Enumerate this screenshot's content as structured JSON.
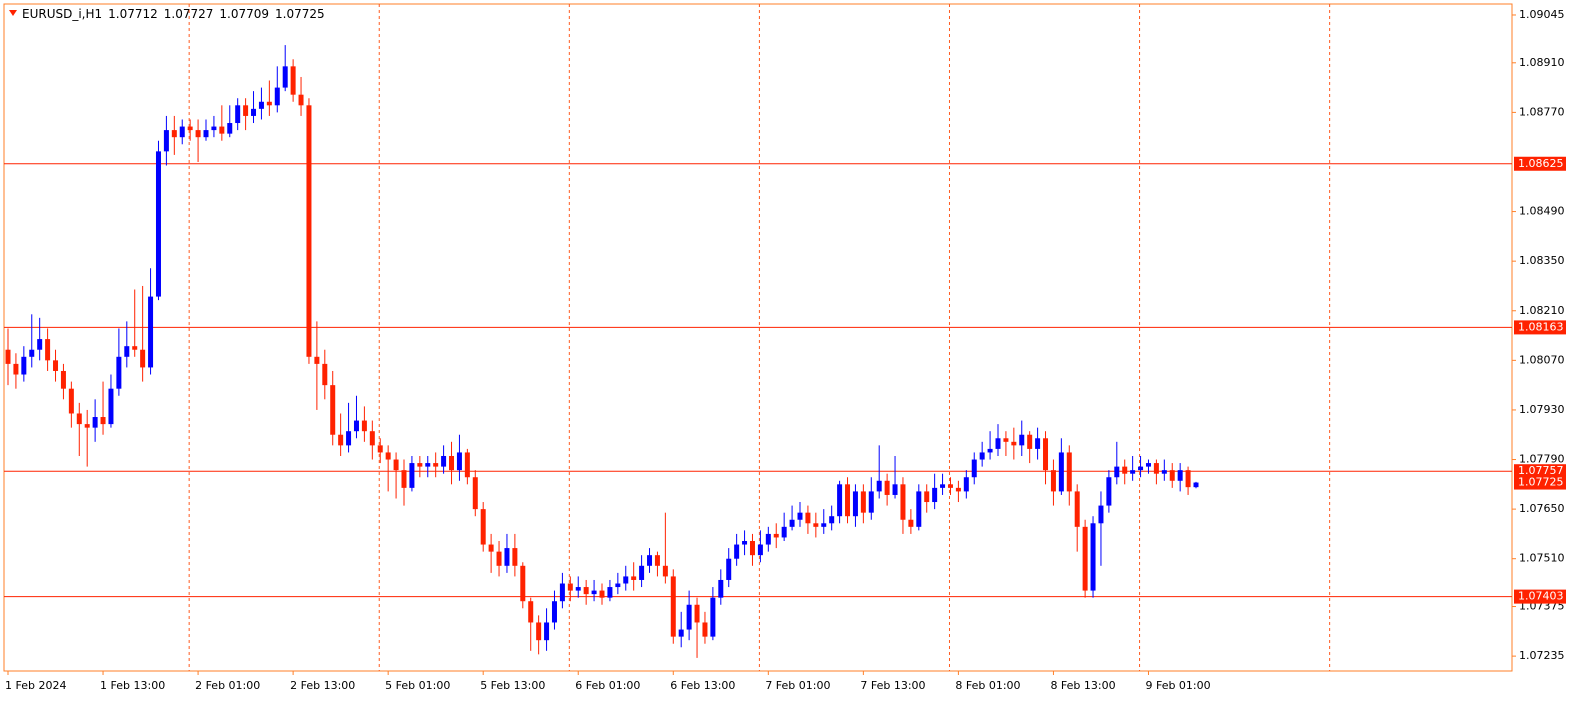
{
  "chart_data": {
    "type": "candlestick",
    "title": "EURUSD_i,H1",
    "up_color": "#0000ff",
    "down_color": "#ff2200",
    "line_color": "#ff2200",
    "ylim": [
      1.07193,
      1.09076
    ],
    "yticks": [
      1.09045,
      {
        "value": 1.0891,
        "label": "1.08910"
      },
      {
        "value": 1.0877,
        "label": "1.08770"
      },
      {
        "value": 1.0849,
        "label": "1.08490"
      },
      {
        "value": 1.0835,
        "label": "1.08350"
      },
      {
        "value": 1.0821,
        "label": "1.08210"
      },
      {
        "value": 1.0807,
        "label": "1.08070"
      },
      {
        "value": 1.0793,
        "label": "1.07930"
      },
      {
        "value": 1.0779,
        "label": "1.07790"
      },
      {
        "value": 1.0765,
        "label": "1.07650"
      },
      {
        "value": 1.0751,
        "label": "1.07510"
      },
      1.07375,
      1.07235
    ],
    "hlines": [
      1.08625,
      1.08163,
      1.07757,
      1.07403
    ],
    "categories": [
      "1 Feb 2024",
      null,
      null,
      null,
      null,
      null,
      null,
      null,
      null,
      null,
      null,
      null,
      "1 Feb 13:00",
      null,
      null,
      null,
      null,
      null,
      null,
      null,
      null,
      null,
      null,
      null,
      "2 Feb 01:00",
      null,
      null,
      null,
      null,
      null,
      null,
      null,
      null,
      null,
      null,
      null,
      "2 Feb 13:00",
      null,
      null,
      null,
      null,
      null,
      null,
      null,
      null,
      null,
      null,
      null,
      "5 Feb 01:00",
      null,
      null,
      null,
      null,
      null,
      null,
      null,
      null,
      null,
      null,
      null,
      "5 Feb 13:00",
      null,
      null,
      null,
      null,
      null,
      null,
      null,
      null,
      null,
      null,
      null,
      "6 Feb 01:00",
      null,
      null,
      null,
      null,
      null,
      null,
      null,
      null,
      null,
      null,
      null,
      "6 Feb 13:00",
      null,
      null,
      null,
      null,
      null,
      null,
      null,
      null,
      null,
      null,
      null,
      "7 Feb 01:00",
      null,
      null,
      null,
      null,
      null,
      null,
      null,
      null,
      null,
      null,
      null,
      "7 Feb 13:00",
      null,
      null,
      null,
      null,
      null,
      null,
      null,
      null,
      null,
      null,
      null,
      "8 Feb 01:00",
      null,
      null,
      null,
      null,
      null,
      null,
      null,
      null,
      null,
      null,
      null,
      "8 Feb 13:00",
      null,
      null,
      null,
      null,
      null,
      null,
      null,
      null,
      null,
      null,
      null,
      "9 Feb 01:00",
      null,
      null,
      null,
      null,
      null,
      null
    ],
    "open": [
      1.081,
      1.0806,
      1.0803,
      1.0808,
      1.081,
      1.0813,
      1.0807,
      1.0804,
      1.0799,
      1.0792,
      1.0789,
      1.0788,
      1.0791,
      1.0789,
      1.0799,
      1.0808,
      1.0811,
      1.081,
      1.0805,
      1.0825,
      1.0866,
      1.0872,
      1.087,
      1.0873,
      1.0872,
      1.087,
      1.0872,
      1.0873,
      1.0871,
      1.0874,
      1.0879,
      1.0876,
      1.0878,
      1.088,
      1.0879,
      1.0884,
      1.089,
      1.0882,
      1.0879,
      1.0808,
      1.0806,
      1.08,
      1.0786,
      1.0783,
      1.0787,
      1.079,
      1.0787,
      1.0783,
      1.0781,
      1.0779,
      1.0776,
      1.0771,
      1.0778,
      1.0777,
      1.0778,
      1.0777,
      1.078,
      1.0776,
      1.0781,
      1.0774,
      1.0765,
      1.0755,
      1.0753,
      1.0749,
      1.0754,
      1.0749,
      1.0739,
      1.0733,
      1.0728,
      1.0733,
      1.0739,
      1.0744,
      1.0742,
      1.0743,
      1.0741,
      1.0742,
      1.074,
      1.0743,
      1.0744,
      1.0746,
      1.0745,
      1.0749,
      1.0752,
      1.0749,
      1.0746,
      1.0729,
      1.0731,
      1.0738,
      1.0733,
      1.0729,
      1.074,
      1.0745,
      1.0751,
      1.0755,
      1.0756,
      1.0752,
      1.0755,
      1.0758,
      1.0757,
      1.076,
      1.0762,
      1.0764,
      1.0761,
      1.076,
      1.0761,
      1.0763,
      1.0772,
      1.0763,
      1.077,
      1.0764,
      1.077,
      1.0773,
      1.0769,
      1.0772,
      1.0762,
      1.076,
      1.077,
      1.0767,
      1.0771,
      1.0772,
      1.0771,
      1.077,
      1.0774,
      1.0779,
      1.0781,
      1.0782,
      1.0785,
      1.0784,
      1.0783,
      1.0786,
      1.0782,
      1.0785,
      1.0776,
      1.077,
      1.0781,
      1.077,
      1.076,
      1.0742,
      1.0761,
      1.0766,
      1.0774,
      1.0777,
      1.0775,
      1.0776,
      1.0777,
      1.0778,
      1.0775,
      1.0776,
      1.0773,
      1.0776,
      1.07712
    ],
    "high": [
      1.0816,
      1.0809,
      1.0811,
      1.082,
      1.0819,
      1.0816,
      1.081,
      1.0806,
      1.0801,
      1.0795,
      1.0793,
      1.0796,
      1.0801,
      1.0803,
      1.0816,
      1.0818,
      1.0827,
      1.0828,
      1.0833,
      1.0869,
      1.0876,
      1.0876,
      1.0875,
      1.0875,
      1.0875,
      1.0875,
      1.0876,
      1.0879,
      1.0879,
      1.0881,
      1.0881,
      1.0883,
      1.0884,
      1.0886,
      1.089,
      1.0896,
      1.0892,
      1.0887,
      1.0881,
      1.0818,
      1.081,
      1.0804,
      1.0792,
      1.0795,
      1.0797,
      1.0794,
      1.079,
      1.0785,
      1.0783,
      1.0781,
      1.0779,
      1.078,
      1.078,
      1.078,
      1.0781,
      1.0783,
      1.0784,
      1.0786,
      1.0782,
      1.0776,
      1.0767,
      1.0758,
      1.0756,
      1.0758,
      1.0758,
      1.075,
      1.074,
      1.0735,
      1.0737,
      1.0742,
      1.0747,
      1.0746,
      1.0746,
      1.0745,
      1.0745,
      1.0744,
      1.0745,
      1.0747,
      1.0749,
      1.075,
      1.0752,
      1.0754,
      1.0753,
      1.0764,
      1.0748,
      1.0736,
      1.0742,
      1.074,
      1.0736,
      1.0743,
      1.0748,
      1.0754,
      1.0758,
      1.0759,
      1.0758,
      1.0759,
      1.076,
      1.0761,
      1.0764,
      1.0766,
      1.0767,
      1.0766,
      1.0764,
      1.0765,
      1.0766,
      1.0773,
      1.0774,
      1.0772,
      1.0772,
      1.0774,
      1.0783,
      1.0775,
      1.078,
      1.0774,
      1.0765,
      1.0772,
      1.0772,
      1.0775,
      1.0775,
      1.0774,
      1.0773,
      1.0776,
      1.0781,
      1.0784,
      1.0787,
      1.0789,
      1.0787,
      1.0788,
      1.079,
      1.0787,
      1.0788,
      1.0787,
      1.0779,
      1.0785,
      1.0783,
      1.0772,
      1.0762,
      1.0763,
      1.077,
      1.0776,
      1.0784,
      1.0779,
      1.078,
      1.078,
      1.0779,
      1.0779,
      1.0779,
      1.0778,
      1.0778,
      1.0777,
      1.07727
    ],
    "low": [
      1.08,
      1.0799,
      1.0801,
      1.0805,
      1.0807,
      1.0804,
      1.0801,
      1.0796,
      1.0788,
      1.078,
      1.0777,
      1.0784,
      1.0786,
      1.0788,
      1.0797,
      1.0805,
      1.0808,
      1.0801,
      1.0803,
      1.0824,
      1.0862,
      1.0865,
      1.0868,
      1.0869,
      1.0863,
      1.0869,
      1.087,
      1.0869,
      1.087,
      1.0872,
      1.0872,
      1.0874,
      1.0875,
      1.0876,
      1.0877,
      1.0883,
      1.088,
      1.0876,
      1.0806,
      1.0793,
      1.0796,
      1.0783,
      1.078,
      1.0781,
      1.0785,
      1.0784,
      1.0779,
      1.0778,
      1.077,
      1.0768,
      1.0766,
      1.077,
      1.0774,
      1.0774,
      1.0774,
      1.0775,
      1.0772,
      1.0773,
      1.0772,
      1.0763,
      1.0753,
      1.0747,
      1.0746,
      1.0747,
      1.0746,
      1.0737,
      1.0725,
      1.0724,
      1.0725,
      1.0731,
      1.0737,
      1.0739,
      1.074,
      1.0738,
      1.0739,
      1.0738,
      1.0739,
      1.0741,
      1.0742,
      1.0742,
      1.0743,
      1.0747,
      1.0746,
      1.0744,
      1.0727,
      1.0726,
      1.0728,
      1.0723,
      1.0727,
      1.0728,
      1.0738,
      1.0743,
      1.0749,
      1.0752,
      1.0749,
      1.075,
      1.0753,
      1.0754,
      1.0756,
      1.0759,
      1.076,
      1.0758,
      1.0757,
      1.0758,
      1.0759,
      1.0761,
      1.0761,
      1.076,
      1.0761,
      1.0762,
      1.0768,
      1.0766,
      1.0768,
      1.0758,
      1.0758,
      1.0759,
      1.0764,
      1.0765,
      1.0769,
      1.0769,
      1.0767,
      1.0768,
      1.0772,
      1.0777,
      1.0779,
      1.078,
      1.078,
      1.0779,
      1.078,
      1.0778,
      1.0779,
      1.0772,
      1.0766,
      1.0769,
      1.0766,
      1.0753,
      1.074,
      1.074,
      1.0749,
      1.0764,
      1.0772,
      1.0772,
      1.0773,
      1.0774,
      1.0775,
      1.0772,
      1.0773,
      1.0771,
      1.077,
      1.0769,
      1.07709
    ],
    "close": [
      1.0806,
      1.0803,
      1.0808,
      1.081,
      1.0813,
      1.0807,
      1.0804,
      1.0799,
      1.0792,
      1.0789,
      1.0788,
      1.0791,
      1.0789,
      1.0799,
      1.0808,
      1.0811,
      1.081,
      1.0805,
      1.0825,
      1.0866,
      1.0872,
      1.087,
      1.0873,
      1.0872,
      1.087,
      1.0872,
      1.0873,
      1.0871,
      1.0874,
      1.0879,
      1.0876,
      1.0878,
      1.088,
      1.0879,
      1.0884,
      1.089,
      1.0882,
      1.0879,
      1.0808,
      1.0806,
      1.08,
      1.0786,
      1.0783,
      1.0787,
      1.079,
      1.0787,
      1.0783,
      1.0781,
      1.0779,
      1.0776,
      1.0771,
      1.0778,
      1.0777,
      1.0778,
      1.0777,
      1.078,
      1.0776,
      1.0781,
      1.0774,
      1.0765,
      1.0755,
      1.0753,
      1.0749,
      1.0754,
      1.0749,
      1.0739,
      1.0733,
      1.0728,
      1.0733,
      1.0739,
      1.0744,
      1.0742,
      1.0743,
      1.0741,
      1.0742,
      1.074,
      1.0743,
      1.0744,
      1.0746,
      1.0745,
      1.0749,
      1.0752,
      1.0749,
      1.0746,
      1.0729,
      1.0731,
      1.0738,
      1.0733,
      1.0729,
      1.074,
      1.0745,
      1.0751,
      1.0755,
      1.0756,
      1.0752,
      1.0755,
      1.0758,
      1.0757,
      1.076,
      1.0762,
      1.0764,
      1.0761,
      1.076,
      1.0761,
      1.0763,
      1.0772,
      1.0763,
      1.077,
      1.0764,
      1.077,
      1.0773,
      1.0769,
      1.0772,
      1.0762,
      1.076,
      1.077,
      1.0767,
      1.0771,
      1.0772,
      1.0771,
      1.077,
      1.0774,
      1.0779,
      1.0781,
      1.0782,
      1.0785,
      1.0784,
      1.0783,
      1.0786,
      1.0782,
      1.0785,
      1.0776,
      1.077,
      1.0781,
      1.077,
      1.076,
      1.0742,
      1.0761,
      1.0766,
      1.0774,
      1.0777,
      1.0775,
      1.0776,
      1.0777,
      1.0778,
      1.0775,
      1.0776,
      1.0773,
      1.0776,
      1.07712,
      1.07725
    ]
  }
}
